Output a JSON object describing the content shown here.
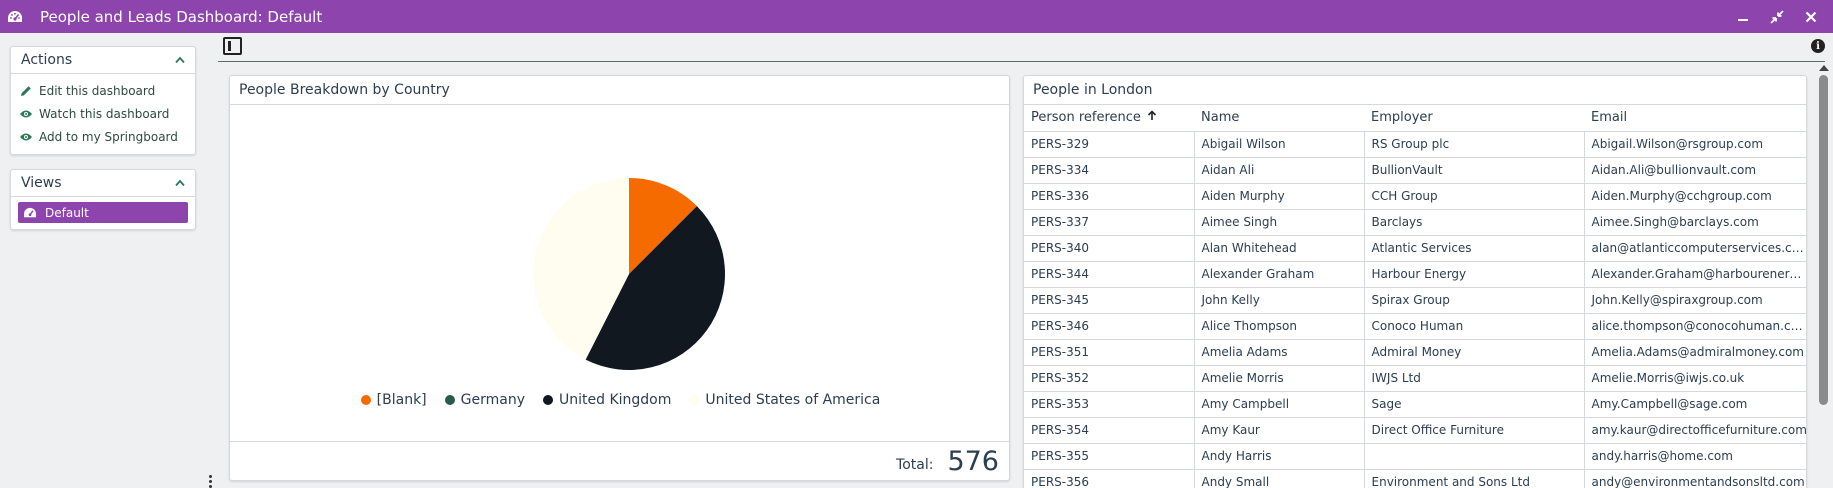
{
  "window": {
    "title": "People and Leads Dashboard: Default"
  },
  "actions_panel": {
    "heading": "Actions",
    "items": [
      {
        "label": "Edit this dashboard",
        "icon": "pencil-icon"
      },
      {
        "label": "Watch this dashboard",
        "icon": "eye-icon"
      },
      {
        "label": "Add to my Springboard",
        "icon": "eye-icon"
      }
    ]
  },
  "views_panel": {
    "heading": "Views",
    "items": [
      {
        "label": "Default",
        "icon": "dashboard-icon",
        "selected": true
      }
    ]
  },
  "chart_card": {
    "title": "People Breakdown by Country",
    "total_label": "Total:",
    "total_value": "576"
  },
  "chart_data": {
    "type": "pie",
    "categories": [
      "[Blank]",
      "Germany",
      "United Kingdom",
      "United States of America"
    ],
    "values": [
      72,
      0,
      259,
      245
    ],
    "colors": [
      "#f56b00",
      "#2a5a4a",
      "#111820",
      "#fffdf0"
    ],
    "legend_position": "bottom"
  },
  "table_card": {
    "title": "People in London",
    "columns": [
      "Person reference",
      "Name",
      "Employer",
      "Email"
    ],
    "sorted_column": "Person reference",
    "sort_direction": "ascending",
    "rows": [
      [
        "PERS-329",
        "Abigail Wilson",
        "RS Group plc",
        "Abigail.Wilson@rsgroup.com"
      ],
      [
        "PERS-334",
        "Aidan Ali",
        "BullionVault",
        "Aidan.Ali@bullionvault.com"
      ],
      [
        "PERS-336",
        "Aiden Murphy",
        "CCH Group",
        "Aiden.Murphy@cchgroup.com"
      ],
      [
        "PERS-337",
        "Aimee Singh",
        "Barclays",
        "Aimee.Singh@barclays.com"
      ],
      [
        "PERS-340",
        "Alan Whitehead",
        "Atlantic Services",
        "alan@atlanticcomputerservices.com"
      ],
      [
        "PERS-344",
        "Alexander Graham",
        "Harbour Energy",
        "Alexander.Graham@harbourenergy.com"
      ],
      [
        "PERS-345",
        "John Kelly",
        "Spirax Group",
        "John.Kelly@spiraxgroup.com"
      ],
      [
        "PERS-346",
        "Alice Thompson",
        "Conoco Human",
        "alice.thompson@conocohuman.com"
      ],
      [
        "PERS-351",
        "Amelia Adams",
        "Admiral Money",
        "Amelia.Adams@admiralmoney.com"
      ],
      [
        "PERS-352",
        "Amelie Morris",
        "IWJS Ltd",
        "Amelie.Morris@iwjs.co.uk"
      ],
      [
        "PERS-353",
        "Amy Campbell",
        "Sage",
        "Amy.Campbell@sage.com"
      ],
      [
        "PERS-354",
        "Amy Kaur",
        "Direct Office Furniture",
        "amy.kaur@directofficefurniture.com"
      ],
      [
        "PERS-355",
        "Andy Harris",
        "",
        "andy.harris@home.com"
      ],
      [
        "PERS-356",
        "Andy Small",
        "Environment and Sons Ltd",
        "andy@environmentandsonsltd.com"
      ]
    ]
  },
  "colors": {
    "accent": "#8e44ad",
    "icon_green": "#2a7a5a"
  }
}
